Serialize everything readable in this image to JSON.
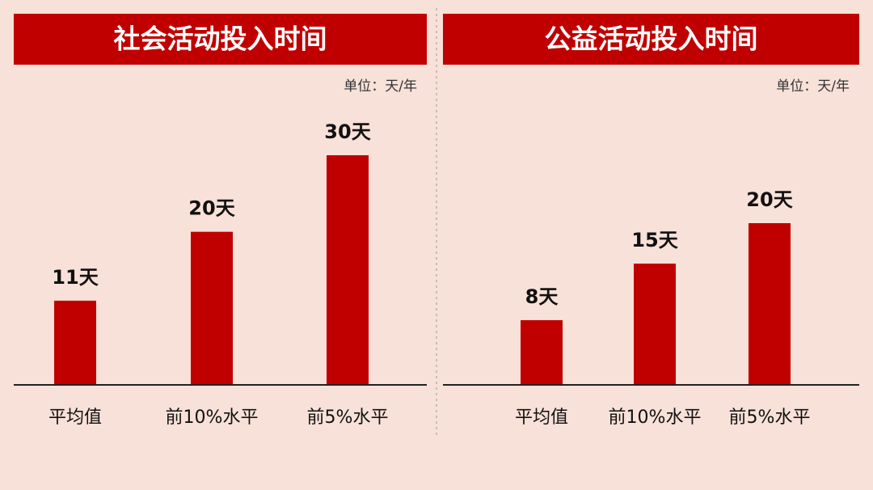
{
  "chart_data": [
    {
      "type": "bar",
      "title": "社会活动投入时间",
      "unit": "单位：天/年",
      "categories": [
        "平均值",
        "前10%水平",
        "前5%水平"
      ],
      "values": [
        11,
        20,
        30
      ],
      "value_labels": [
        "11天",
        "20天",
        "30天"
      ],
      "color": "#c00000"
    },
    {
      "type": "bar",
      "title": "公益活动投入时间",
      "unit": "单位：天/年",
      "categories": [
        "平均值",
        "前10%水平",
        "前5%水平"
      ],
      "values": [
        8,
        15,
        20
      ],
      "value_labels": [
        "8天",
        "15天",
        "20天"
      ],
      "color": "#c00000"
    }
  ]
}
